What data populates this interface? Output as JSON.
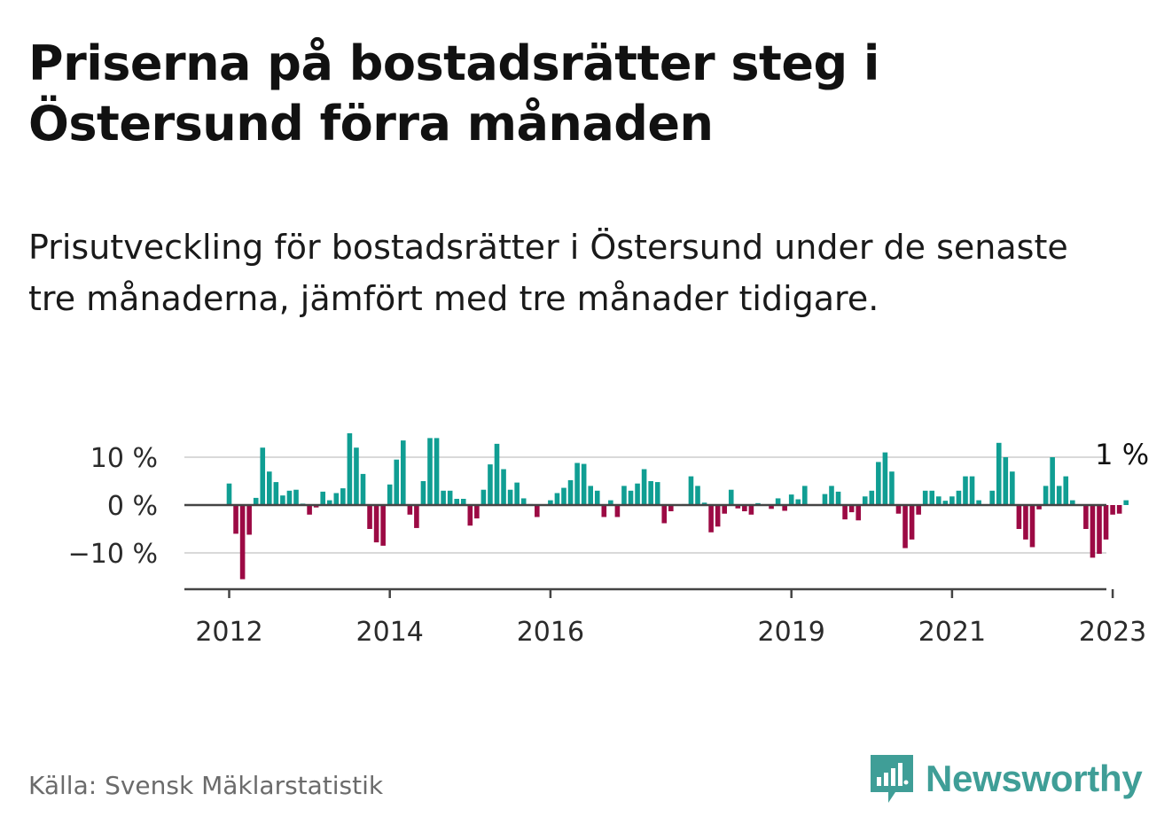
{
  "title": "Priserna på bostadsrätter steg i Östersund förra månaden",
  "subtitle": "Prisutveckling för bostadsrätter i Östersund under de senaste tre månaderna, jämfört med tre månader tidigare.",
  "source": "Källa: Svensk Mäklarstatistik",
  "brand": {
    "name": "Newsworthy",
    "icon": "newsworthy-logo-icon",
    "color": "#3f9e97"
  },
  "colors": {
    "positive": "#109e93",
    "negative": "#9c0a44",
    "grid": "#d9d9d9",
    "zero": "#444444"
  },
  "chart_data": {
    "type": "bar",
    "x_start": "2012-01",
    "x_end": "2023-03",
    "ylim": [
      -17,
      14
    ],
    "yticks": [
      10,
      0,
      -10
    ],
    "ytick_labels": [
      "10 %",
      "0 %",
      "−10 %"
    ],
    "xticks": [
      "2012",
      "2014",
      "2016",
      "2019",
      "2021",
      "2023"
    ],
    "grid": true,
    "annotation": {
      "text": "1 %",
      "at": "2023-02"
    },
    "values": [
      4.5,
      -6.0,
      -15.5,
      -6.2,
      1.5,
      12.0,
      7.0,
      4.8,
      2.0,
      3.0,
      3.2,
      0.3,
      -2.0,
      -0.5,
      2.8,
      1.0,
      2.5,
      3.5,
      15.0,
      12.0,
      6.5,
      -5.0,
      -7.8,
      -8.5,
      4.3,
      9.5,
      13.5,
      -2.0,
      -4.8,
      5.0,
      14.0,
      14.0,
      3.0,
      3.0,
      1.3,
      1.3,
      -4.3,
      -2.8,
      3.2,
      8.5,
      12.8,
      7.5,
      3.2,
      4.7,
      1.4,
      0.2,
      -2.5,
      0.0,
      1.0,
      2.5,
      3.6,
      5.2,
      8.8,
      8.6,
      4.0,
      3.0,
      -2.5,
      1.0,
      -2.5,
      4.0,
      3.0,
      4.5,
      7.5,
      5.0,
      4.8,
      -3.8,
      -1.3,
      0.0,
      0.2,
      6.0,
      4.0,
      0.5,
      -5.7,
      -4.5,
      -1.8,
      3.2,
      -0.7,
      -1.3,
      -2.0,
      0.4,
      0.0,
      -0.8,
      1.4,
      -1.2,
      2.2,
      1.2,
      4.0,
      0.0,
      0.0,
      2.3,
      4.0,
      2.8,
      -3.0,
      -1.5,
      -3.2,
      1.8,
      3.0,
      9.0,
      11.0,
      7.0,
      -1.8,
      -9.0,
      -7.2,
      -2.0,
      3.0,
      3.0,
      1.8,
      0.9,
      1.8,
      3.0,
      6.0,
      6.0,
      1.0,
      0.0,
      3.0,
      13.0,
      10.0,
      7.0,
      -5.0,
      -7.2,
      -8.8,
      -0.9,
      4.0,
      10.0,
      4.0,
      6.0,
      1.0,
      0.0,
      -5.0,
      -11.0,
      -10.2,
      -7.2,
      -2.0,
      -1.8,
      1.0
    ]
  }
}
